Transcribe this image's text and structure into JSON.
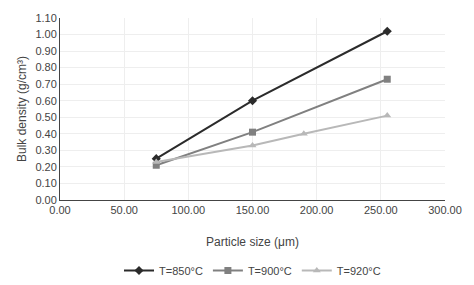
{
  "chart_data": {
    "type": "line",
    "x_label": "Particle size (μm)",
    "y_label": "Bulk density (g/cm³)",
    "series": [
      {
        "name": "T=850°C",
        "color": "#2b2b2b",
        "marker": "diamond",
        "line_style": "solid",
        "x": [
          75,
          150,
          255
        ],
        "values": [
          0.25,
          0.6,
          1.02
        ]
      },
      {
        "name": "T=900°C",
        "color": "#808080",
        "marker": "square",
        "line_style": "solid",
        "x": [
          75,
          150,
          255
        ],
        "values": [
          0.21,
          0.41,
          0.73
        ]
      },
      {
        "name": "T=920°C",
        "color": "#b8b8b8",
        "marker": "triangle-up",
        "line_style": "solid",
        "x": [
          75,
          150,
          190,
          255
        ],
        "values": [
          0.23,
          0.33,
          0.4,
          0.51
        ]
      }
    ],
    "xlim": [
      0,
      300
    ],
    "ylim": [
      0,
      1.1
    ],
    "xticks": [
      {
        "value": 0,
        "label": "0.00"
      },
      {
        "value": 50,
        "label": "50.00"
      },
      {
        "value": 100,
        "label": "100.00"
      },
      {
        "value": 150,
        "label": "150.00"
      },
      {
        "value": 200,
        "label": "200.00"
      },
      {
        "value": 250,
        "label": "250.00"
      },
      {
        "value": 300,
        "label": "300.00"
      }
    ],
    "yticks": [
      {
        "value": 0,
        "label": "0.00"
      },
      {
        "value": 0.1,
        "label": "0.10"
      },
      {
        "value": 0.2,
        "label": "0.20"
      },
      {
        "value": 0.3,
        "label": "0.30"
      },
      {
        "value": 0.4,
        "label": "0.40"
      },
      {
        "value": 0.5,
        "label": "0.50"
      },
      {
        "value": 0.6,
        "label": "0.60"
      },
      {
        "value": 0.7,
        "label": "0.70"
      },
      {
        "value": 0.8,
        "label": "0.80"
      },
      {
        "value": 0.9,
        "label": "0.90"
      },
      {
        "value": 1.0,
        "label": "1.00"
      },
      {
        "value": 1.1,
        "label": "1.10"
      }
    ],
    "grid": true,
    "legend": "bottom"
  }
}
